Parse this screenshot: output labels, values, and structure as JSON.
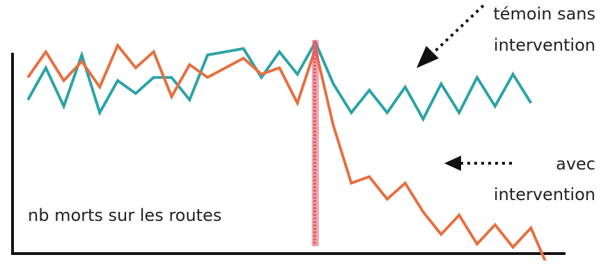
{
  "chart_data": {
    "type": "line",
    "ylabel": "nb morts sur les routes",
    "intervention_x": 16,
    "colors": {
      "temoin": "#2aa3a8",
      "avec": "#e76f3f",
      "intervention": "#e85a6a",
      "axis": "#111111",
      "arrow": "#111111"
    },
    "series": [
      {
        "key": "temoin",
        "name": "témoin sans intervention",
        "label_lines": [
          "témoin sans",
          "intervention"
        ],
        "x": [
          0,
          1,
          2,
          3,
          4,
          5,
          6,
          7,
          8,
          9,
          10,
          11,
          12,
          13,
          14,
          15,
          16,
          17,
          18,
          19,
          20,
          21,
          22,
          23,
          24,
          25,
          26,
          27,
          28
        ],
        "values": [
          48,
          58,
          46,
          62,
          44,
          54,
          50,
          55,
          55,
          48,
          62,
          63,
          64,
          55,
          63,
          56,
          66,
          53,
          44,
          51,
          44,
          52,
          42,
          53,
          44,
          55,
          46,
          56,
          47
        ]
      },
      {
        "key": "avec",
        "name": "avec intervention",
        "label_lines": [
          "avec",
          "intervention"
        ],
        "x": [
          0,
          1,
          2,
          3,
          4,
          5,
          6,
          7,
          8,
          9,
          10,
          11,
          12,
          13,
          14,
          15,
          16,
          17,
          18,
          19,
          20,
          21,
          22,
          23,
          24,
          25,
          26,
          27,
          28,
          29
        ],
        "values": [
          55,
          63,
          54,
          60,
          52,
          65,
          58,
          63,
          49,
          59,
          55,
          58,
          61,
          56,
          58,
          47,
          64,
          40,
          22,
          24,
          17,
          22,
          13,
          6,
          12,
          3,
          9,
          2,
          8,
          -5
        ]
      }
    ]
  }
}
